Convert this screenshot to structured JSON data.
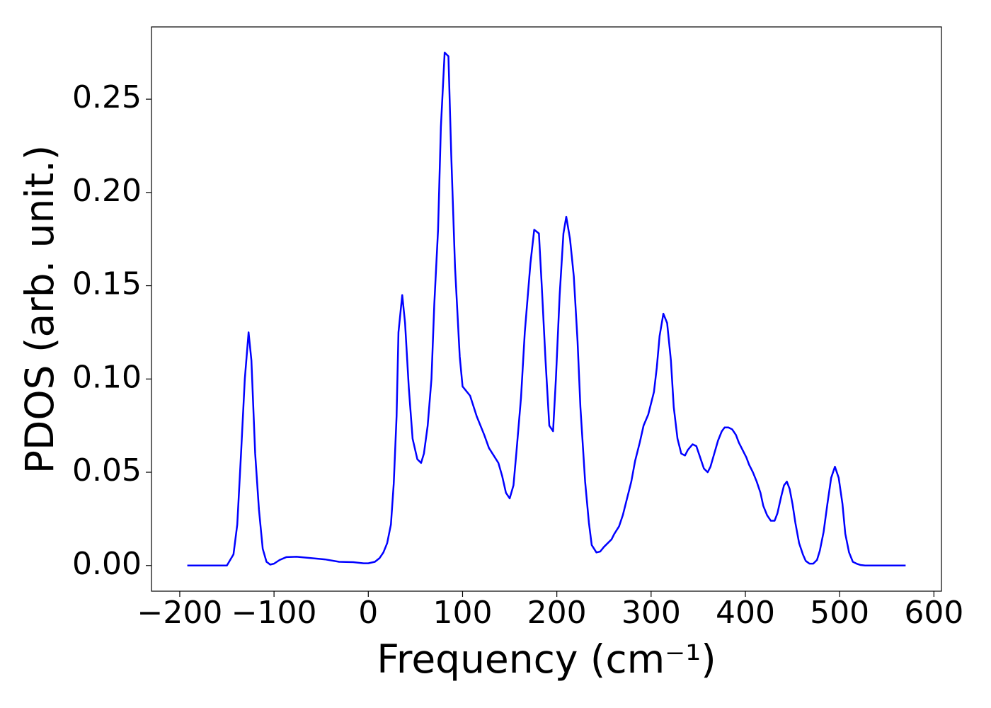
{
  "chart_data": {
    "type": "line",
    "xlabel": "Frequency (cm⁻¹)",
    "ylabel": "PDOS (arb. unit.)",
    "x": [
      -192,
      -150,
      -143,
      -139,
      -135,
      -131,
      -127,
      -124,
      -120,
      -116,
      -112,
      -108,
      -104,
      -100,
      -94,
      -87,
      -76,
      -61,
      -46,
      -31,
      -16,
      -5,
      0,
      7,
      12,
      16,
      20,
      24,
      27,
      30,
      32,
      36,
      39,
      43,
      47,
      52,
      56,
      59,
      63,
      67,
      70,
      74,
      77,
      81,
      85,
      88,
      92,
      97,
      100,
      108,
      115,
      123,
      128,
      133,
      138,
      142,
      146,
      150,
      154,
      157,
      162,
      166,
      172,
      176,
      181,
      184,
      188,
      192,
      196,
      199,
      203,
      207,
      210,
      214,
      218,
      222,
      225,
      230,
      234,
      237,
      242,
      246,
      250,
      258,
      261,
      266,
      270,
      274,
      279,
      283,
      288,
      292,
      297,
      299,
      303,
      306,
      309,
      313,
      317,
      321,
      324,
      328,
      332,
      336,
      339,
      344,
      348,
      352,
      356,
      360,
      363,
      367,
      371,
      375,
      378,
      382,
      386,
      390,
      393,
      397,
      401,
      404,
      408,
      412,
      416,
      419,
      423,
      427,
      431,
      434,
      438,
      441,
      444,
      447,
      450,
      453,
      457,
      461,
      464,
      468,
      472,
      476,
      479,
      483,
      487,
      491,
      495,
      499,
      503,
      506,
      510,
      514,
      518,
      522,
      527,
      570
    ],
    "series": [
      {
        "color": "#0000ff",
        "values": [
          0,
          0,
          0.006,
          0.022,
          0.06,
          0.1,
          0.125,
          0.11,
          0.06,
          0.03,
          0.009,
          0.002,
          0.0005,
          0.001,
          0.003,
          0.0045,
          0.0047,
          0.004,
          0.0033,
          0.002,
          0.0018,
          0.0012,
          0.0012,
          0.002,
          0.004,
          0.007,
          0.012,
          0.022,
          0.044,
          0.08,
          0.125,
          0.145,
          0.13,
          0.095,
          0.068,
          0.057,
          0.055,
          0.06,
          0.075,
          0.1,
          0.14,
          0.18,
          0.235,
          0.275,
          0.273,
          0.22,
          0.16,
          0.112,
          0.096,
          0.091,
          0.08,
          0.07,
          0.063,
          0.059,
          0.055,
          0.048,
          0.039,
          0.036,
          0.043,
          0.06,
          0.09,
          0.125,
          0.162,
          0.18,
          0.178,
          0.15,
          0.11,
          0.075,
          0.072,
          0.1,
          0.145,
          0.178,
          0.187,
          0.175,
          0.155,
          0.12,
          0.085,
          0.045,
          0.023,
          0.011,
          0.007,
          0.0075,
          0.01,
          0.014,
          0.017,
          0.021,
          0.027,
          0.035,
          0.045,
          0.056,
          0.066,
          0.075,
          0.081,
          0.085,
          0.093,
          0.106,
          0.123,
          0.135,
          0.13,
          0.11,
          0.085,
          0.068,
          0.06,
          0.059,
          0.062,
          0.065,
          0.064,
          0.058,
          0.052,
          0.05,
          0.053,
          0.06,
          0.067,
          0.072,
          0.074,
          0.074,
          0.073,
          0.07,
          0.066,
          0.062,
          0.058,
          0.054,
          0.05,
          0.045,
          0.039,
          0.032,
          0.027,
          0.024,
          0.024,
          0.028,
          0.037,
          0.043,
          0.045,
          0.041,
          0.033,
          0.023,
          0.012,
          0.006,
          0.0025,
          0.001,
          0.001,
          0.003,
          0.008,
          0.018,
          0.033,
          0.047,
          0.053,
          0.047,
          0.033,
          0.017,
          0.007,
          0.002,
          0.001,
          0.0003,
          0,
          0
        ]
      }
    ],
    "xlim": [
      -230,
      608
    ],
    "ylim": [
      -0.01375,
      0.28875
    ],
    "xticks": [
      {
        "value": -200,
        "label": "−200"
      },
      {
        "value": -100,
        "label": "−100"
      },
      0,
      100,
      200,
      300,
      400,
      500,
      600
    ],
    "yticks": [
      {
        "value": 0,
        "label": "0.00"
      },
      {
        "value": 0.05,
        "label": "0.05"
      },
      {
        "value": 0.1,
        "label": "0.10"
      },
      {
        "value": 0.15,
        "label": "0.15"
      },
      {
        "value": 0.2,
        "label": "0.20"
      },
      {
        "value": 0.25,
        "label": "0.25"
      }
    ],
    "grid": false
  }
}
